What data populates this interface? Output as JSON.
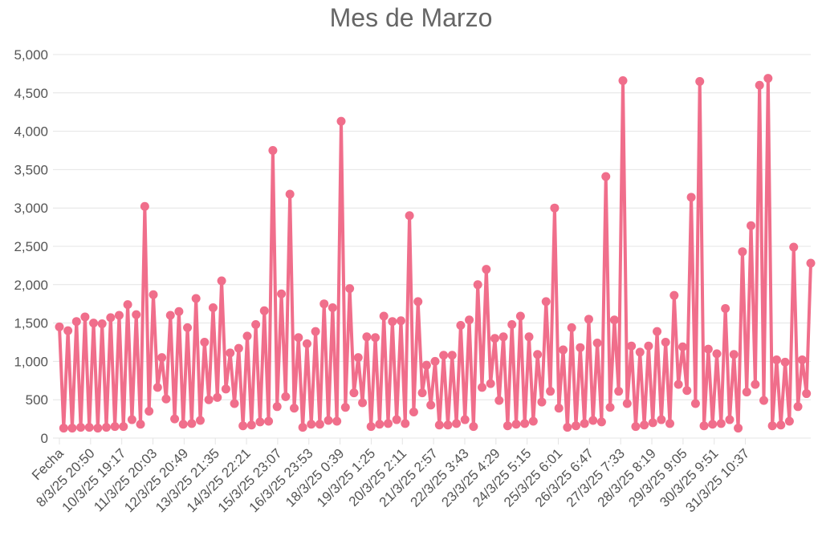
{
  "chart_data": {
    "type": "line",
    "title": "Mes de Marzo",
    "xlabel": "",
    "ylabel": "",
    "ylim": [
      0,
      5000
    ],
    "y_ticks": [
      "0",
      "500",
      "1,000",
      "1,500",
      "2,000",
      "2,500",
      "3,000",
      "3,500",
      "4,000",
      "4,500",
      "5,000"
    ],
    "x_tick_labels": [
      "Fecha",
      "8/3/25 20:50",
      "10/3/25 19:17",
      "11/3/25 20:03",
      "12/3/25 20:49",
      "13/3/25 21:35",
      "14/3/25 22:21",
      "15/3/25 23:07",
      "16/3/25 23:53",
      "18/3/25 0:39",
      "19/3/25 1:25",
      "20/3/25 2:11",
      "21/3/25 2:57",
      "22/3/25 3:43",
      "23/3/25 4:29",
      "24/3/25 5:15",
      "25/3/25 6:01",
      "26/3/25 6:47",
      "27/3/25 7:33",
      "28/3/25 8:19",
      "29/3/25 9:05",
      "30/3/25 9:51",
      "31/3/25 10:37"
    ],
    "grid": true,
    "legend": "none",
    "series": [
      {
        "color": "#f06e8b",
        "values": [
          1450,
          130,
          1400,
          130,
          1520,
          140,
          1580,
          140,
          1500,
          130,
          1490,
          140,
          1570,
          150,
          1600,
          150,
          1740,
          240,
          1610,
          180,
          3020,
          350,
          1870,
          660,
          1050,
          510,
          1600,
          250,
          1650,
          180,
          1440,
          190,
          1820,
          230,
          1250,
          500,
          1700,
          530,
          2050,
          640,
          1110,
          450,
          1170,
          160,
          1330,
          170,
          1480,
          210,
          1660,
          220,
          3750,
          410,
          1880,
          540,
          3180,
          390,
          1310,
          140,
          1230,
          180,
          1390,
          180,
          1750,
          230,
          1700,
          220,
          4130,
          400,
          1950,
          590,
          1050,
          460,
          1320,
          150,
          1310,
          180,
          1590,
          190,
          1520,
          240,
          1530,
          190,
          2900,
          340,
          1780,
          590,
          950,
          430,
          1000,
          170,
          1080,
          170,
          1080,
          190,
          1470,
          240,
          1540,
          150,
          2000,
          660,
          2200,
          710,
          1300,
          490,
          1320,
          160,
          1480,
          180,
          1590,
          190,
          1320,
          220,
          1090,
          470,
          1780,
          610,
          3000,
          390,
          1150,
          140,
          1440,
          160,
          1180,
          190,
          1550,
          230,
          1240,
          210,
          3410,
          400,
          1540,
          610,
          4660,
          450,
          1200,
          150,
          1120,
          170,
          1200,
          200,
          1390,
          240,
          1250,
          190,
          1860,
          700,
          1190,
          620,
          3140,
          450,
          4650,
          160,
          1160,
          180,
          1100,
          190,
          1690,
          240,
          1090,
          130,
          2430,
          600,
          2770,
          700,
          4600,
          490,
          4690,
          160,
          1020,
          170,
          990,
          220,
          2490,
          410,
          1020,
          580,
          2280
        ]
      }
    ]
  }
}
